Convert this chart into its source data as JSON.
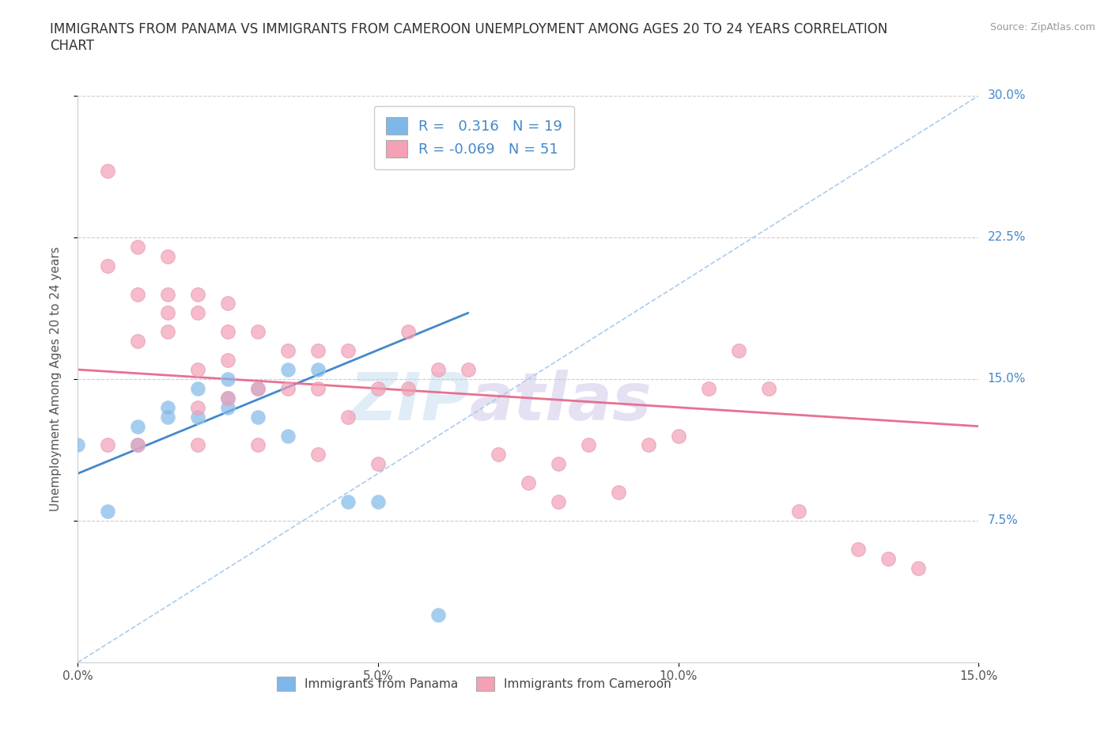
{
  "title": "IMMIGRANTS FROM PANAMA VS IMMIGRANTS FROM CAMEROON UNEMPLOYMENT AMONG AGES 20 TO 24 YEARS CORRELATION\nCHART",
  "source_text": "Source: ZipAtlas.com",
  "ylabel": "Unemployment Among Ages 20 to 24 years",
  "xlim": [
    0.0,
    0.15
  ],
  "ylim": [
    0.0,
    0.3
  ],
  "xticks": [
    0.0,
    0.05,
    0.1,
    0.15
  ],
  "yticks": [
    0.075,
    0.15,
    0.225,
    0.3
  ],
  "xticklabels": [
    "0.0%",
    "5.0%",
    "10.0%",
    "15.0%"
  ],
  "yticklabels": [
    "7.5%",
    "15.0%",
    "22.5%",
    "30.0%"
  ],
  "panama_color": "#7eb8e8",
  "cameroon_color": "#f4a0b5",
  "panama_R": 0.316,
  "panama_N": 19,
  "cameroon_R": -0.069,
  "cameroon_N": 51,
  "panama_scatter_x": [
    0.0,
    0.005,
    0.01,
    0.01,
    0.015,
    0.015,
    0.02,
    0.02,
    0.025,
    0.025,
    0.025,
    0.03,
    0.03,
    0.035,
    0.035,
    0.04,
    0.045,
    0.05,
    0.06
  ],
  "panama_scatter_y": [
    0.115,
    0.08,
    0.115,
    0.125,
    0.13,
    0.135,
    0.13,
    0.145,
    0.135,
    0.14,
    0.15,
    0.13,
    0.145,
    0.12,
    0.155,
    0.155,
    0.085,
    0.085,
    0.025
  ],
  "cameroon_scatter_x": [
    0.005,
    0.005,
    0.01,
    0.01,
    0.01,
    0.015,
    0.015,
    0.015,
    0.015,
    0.02,
    0.02,
    0.02,
    0.02,
    0.025,
    0.025,
    0.025,
    0.03,
    0.03,
    0.03,
    0.035,
    0.035,
    0.04,
    0.04,
    0.04,
    0.045,
    0.045,
    0.05,
    0.05,
    0.055,
    0.055,
    0.06,
    0.065,
    0.07,
    0.075,
    0.08,
    0.08,
    0.085,
    0.09,
    0.095,
    0.1,
    0.105,
    0.11,
    0.115,
    0.12,
    0.13,
    0.135,
    0.14,
    0.005,
    0.01,
    0.02,
    0.025
  ],
  "cameroon_scatter_y": [
    0.26,
    0.21,
    0.22,
    0.195,
    0.17,
    0.215,
    0.195,
    0.185,
    0.175,
    0.195,
    0.185,
    0.155,
    0.135,
    0.19,
    0.175,
    0.16,
    0.175,
    0.145,
    0.115,
    0.165,
    0.145,
    0.165,
    0.145,
    0.11,
    0.165,
    0.13,
    0.145,
    0.105,
    0.175,
    0.145,
    0.155,
    0.155,
    0.11,
    0.095,
    0.105,
    0.085,
    0.115,
    0.09,
    0.115,
    0.12,
    0.145,
    0.165,
    0.145,
    0.08,
    0.06,
    0.055,
    0.05,
    0.115,
    0.115,
    0.115,
    0.14
  ],
  "panama_line_x": [
    0.0,
    0.065
  ],
  "panama_line_y": [
    0.1,
    0.185
  ],
  "cameroon_line_x": [
    0.0,
    0.15
  ],
  "cameroon_line_y": [
    0.155,
    0.125
  ],
  "diag_line_x": [
    0.0,
    0.15
  ],
  "diag_line_y": [
    0.0,
    0.3
  ],
  "watermark_zip": "ZIP",
  "watermark_atlas": "atlas",
  "title_color": "#333333"
}
